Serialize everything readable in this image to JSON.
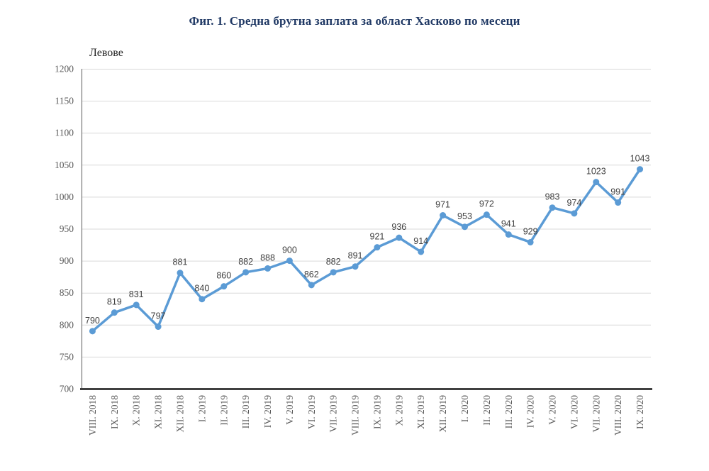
{
  "figure": {
    "title": "Фиг. 1. Средна брутна заплата за област Хасково по месеци"
  },
  "chart_data": {
    "type": "line",
    "title": "Фиг. 1. Средна брутна заплата за област Хасково по месеци",
    "y_axis_label": "Левове",
    "xlabel": "",
    "ylabel": "Левове",
    "categories": [
      "VIII. 2018",
      "IX. 2018",
      "X. 2018",
      "XI. 2018",
      "XII. 2018",
      "I. 2019",
      "II. 2019",
      "III. 2019",
      "IV. 2019",
      "V. 2019",
      "VI. 2019",
      "VII. 2019",
      "VIII. 2019",
      "IX. 2019",
      "X. 2019",
      "XI. 2019",
      "XII. 2019",
      "I. 2020",
      "II. 2020",
      "III. 2020",
      "IV. 2020",
      "V. 2020",
      "VI. 2020",
      "VII. 2020",
      "VIII. 2020",
      "IX. 2020"
    ],
    "values": [
      790,
      819,
      831,
      797,
      881,
      840,
      860,
      882,
      888,
      900,
      862,
      882,
      891,
      921,
      936,
      914,
      971,
      953,
      972,
      941,
      929,
      983,
      974,
      1023,
      991,
      1043
    ],
    "ylim": [
      700,
      1200
    ],
    "y_tick_step": 50,
    "grid": true,
    "legend_position": "none",
    "data_labels": true,
    "colors": {
      "line": "#5b9bd5",
      "marker": "#5b9bd5",
      "data_label": "#404040",
      "axis_text": "#595959",
      "gridline": "#d9d9d9",
      "x_axis_line": "#404040",
      "y_axis_line": "#595959",
      "title": "#1f3864"
    }
  }
}
